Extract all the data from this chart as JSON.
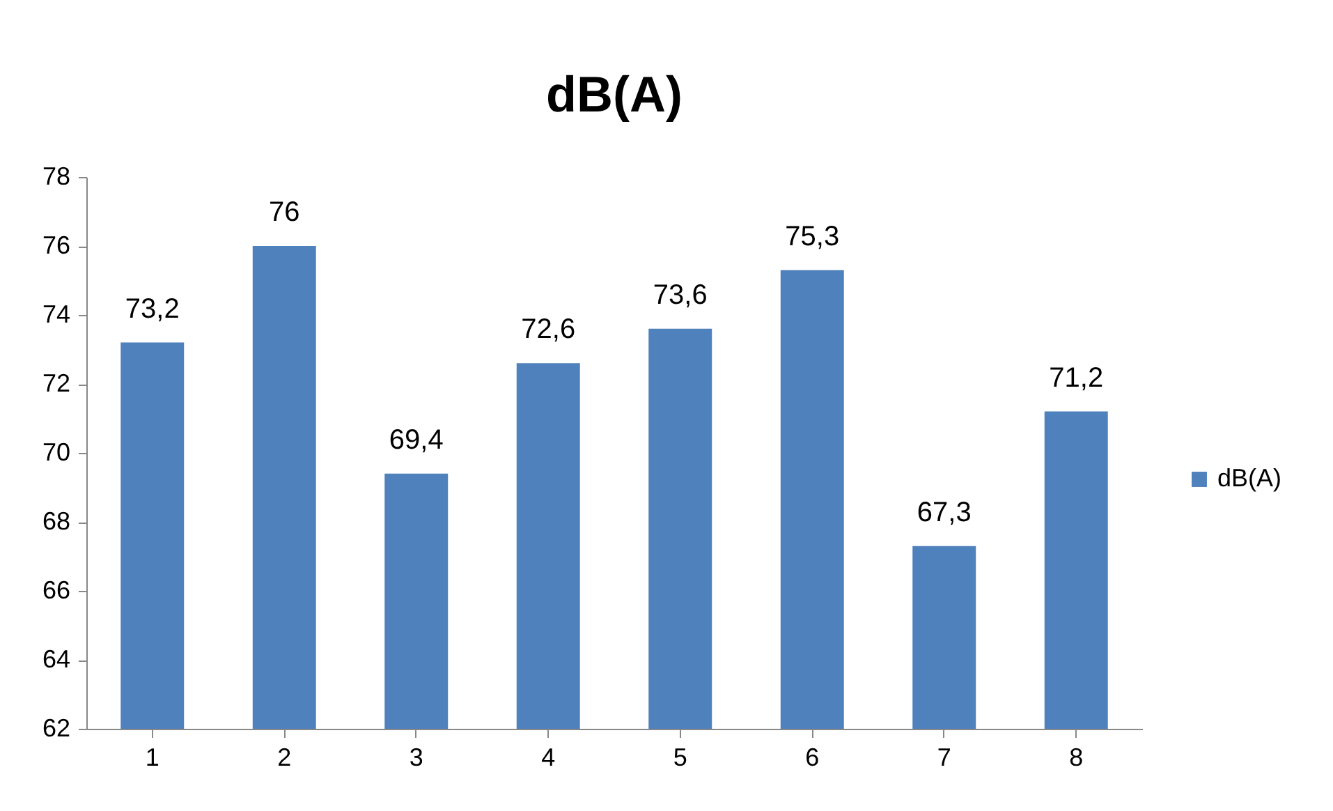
{
  "chart_data": {
    "type": "bar",
    "title": "dB(A)",
    "categories": [
      "1",
      "2",
      "3",
      "4",
      "5",
      "6",
      "7",
      "8"
    ],
    "series": [
      {
        "name": "dB(A)",
        "color": "#4f81bd",
        "values": [
          73.2,
          76,
          69.4,
          72.6,
          73.6,
          75.3,
          67.3,
          71.2
        ],
        "value_labels": [
          "73,2",
          "76",
          "69,4",
          "72,6",
          "73,6",
          "75,3",
          "67,3",
          "71,2"
        ]
      }
    ],
    "ylim": [
      62,
      78
    ],
    "yticks": [
      62,
      64,
      66,
      68,
      70,
      72,
      74,
      76,
      78
    ],
    "grid": false,
    "legend": "right"
  }
}
